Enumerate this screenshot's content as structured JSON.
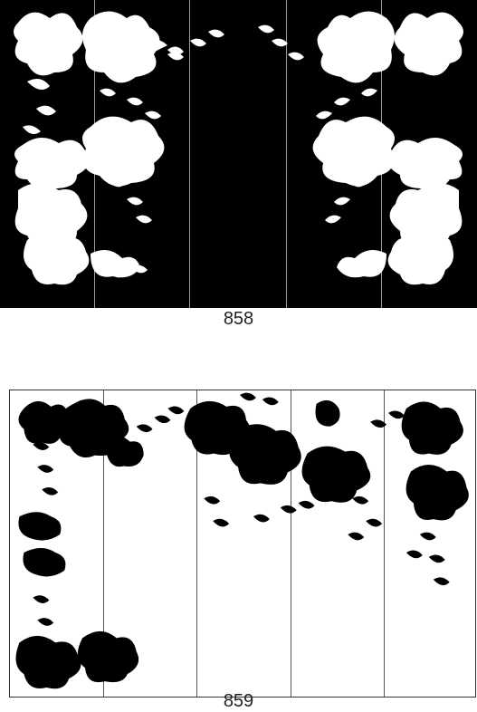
{
  "designs": [
    {
      "label": "858",
      "fill": "#000000",
      "motif": "#ffffff",
      "panels": 5
    },
    {
      "label": "859",
      "fill": "#ffffff",
      "motif": "#000000",
      "panels": 5
    }
  ]
}
